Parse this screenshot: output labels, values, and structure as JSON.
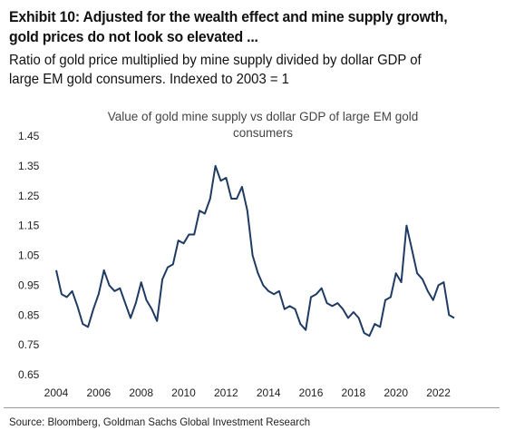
{
  "header": {
    "title_line1": "Exhibit 10: Adjusted for the wealth effect and mine supply growth,",
    "title_line2": "gold prices do not look so elevated ...",
    "subtitle_line1": "Ratio of gold price multiplied by mine supply divided by dollar GDP of",
    "subtitle_line2": "large EM gold consumers. Indexed to 2003 = 1"
  },
  "chart_data": {
    "type": "line",
    "title_line1": "Value of gold mine supply vs dollar GDP of large EM gold",
    "title_line2": "consumers",
    "xlabel": "",
    "ylabel": "",
    "xlim": [
      2004,
      2023.3
    ],
    "ylim": [
      0.65,
      1.45
    ],
    "x_ticks": [
      "2004",
      "2006",
      "2008",
      "2010",
      "2012",
      "2014",
      "2016",
      "2018",
      "2020",
      "2022"
    ],
    "x_tick_values": [
      2004,
      2006,
      2008,
      2010,
      2012,
      2014,
      2016,
      2018,
      2020,
      2022
    ],
    "y_ticks": [
      "1.45",
      "1.35",
      "1.25",
      "1.15",
      "1.05",
      "0.95",
      "0.85",
      "0.75",
      "0.65"
    ],
    "y_tick_values": [
      1.45,
      1.35,
      1.25,
      1.15,
      1.05,
      0.95,
      0.85,
      0.75,
      0.65
    ],
    "grid": false,
    "line_color": "#1f3b63",
    "series": [
      {
        "x": [
          2004.0,
          2004.25,
          2004.5,
          2004.75,
          2005.0,
          2005.25,
          2005.5,
          2005.75,
          2006.0,
          2006.25,
          2006.5,
          2006.75,
          2007.0,
          2007.25,
          2007.5,
          2007.75,
          2008.0,
          2008.25,
          2008.5,
          2008.75,
          2009.0,
          2009.25,
          2009.5,
          2009.75,
          2010.0,
          2010.25,
          2010.5,
          2010.75,
          2011.0,
          2011.25,
          2011.5,
          2011.75,
          2012.0,
          2012.25,
          2012.5,
          2012.75,
          2013.0,
          2013.25,
          2013.5,
          2013.75,
          2014.0,
          2014.25,
          2014.5,
          2014.75,
          2015.0,
          2015.25,
          2015.5,
          2015.75,
          2016.0,
          2016.25,
          2016.5,
          2016.75,
          2017.0,
          2017.25,
          2017.5,
          2017.75,
          2018.0,
          2018.25,
          2018.5,
          2018.75,
          2019.0,
          2019.25,
          2019.5,
          2019.75,
          2020.0,
          2020.25,
          2020.5,
          2020.75,
          2021.0,
          2021.25,
          2021.5,
          2021.75,
          2022.0,
          2022.25,
          2022.5,
          2022.75
        ],
        "values": [
          1.0,
          0.92,
          0.91,
          0.93,
          0.88,
          0.82,
          0.81,
          0.87,
          0.92,
          1.0,
          0.95,
          0.93,
          0.94,
          0.89,
          0.84,
          0.89,
          0.96,
          0.9,
          0.87,
          0.83,
          0.97,
          1.01,
          1.02,
          1.1,
          1.09,
          1.12,
          1.12,
          1.2,
          1.19,
          1.24,
          1.35,
          1.3,
          1.31,
          1.24,
          1.24,
          1.28,
          1.2,
          1.05,
          0.99,
          0.95,
          0.93,
          0.92,
          0.93,
          0.87,
          0.88,
          0.87,
          0.82,
          0.8,
          0.91,
          0.92,
          0.94,
          0.89,
          0.88,
          0.89,
          0.87,
          0.84,
          0.86,
          0.84,
          0.79,
          0.78,
          0.82,
          0.81,
          0.9,
          0.91,
          0.99,
          0.96,
          1.15,
          1.07,
          0.99,
          0.97,
          0.93,
          0.9,
          0.95,
          0.96,
          0.85,
          0.84
        ]
      }
    ]
  },
  "source": "Source: Bloomberg, Goldman Sachs Global Investment Research"
}
